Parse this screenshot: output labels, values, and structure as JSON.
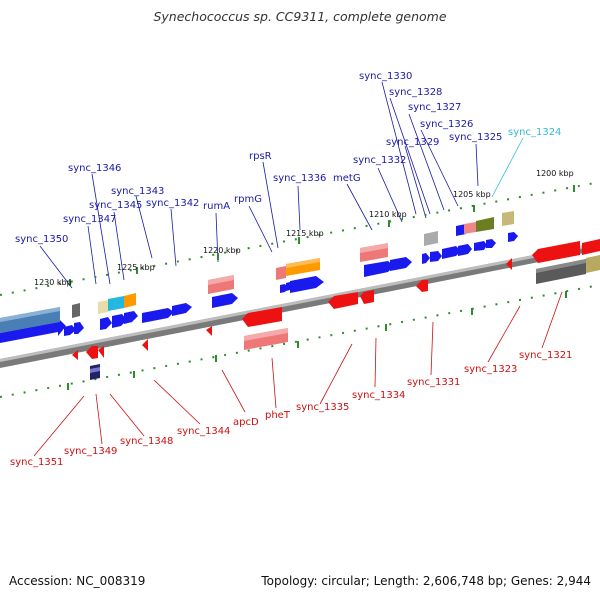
{
  "title": "Synechococcus sp. CC9311, complete genome",
  "footer": {
    "accession": "Accession: NC_008319",
    "summary": "Topology: circular; Length: 2,606,748 bp; Genes: 2,944"
  },
  "colors": {
    "forward_gene": "#1a1aee",
    "reverse_gene": "#ee1111",
    "label_forward": "#1a1aa8",
    "label_reverse": "#cc1111",
    "label_highlight": "#33bbdd",
    "backbone": "#7a7a7a",
    "tick": "#2e8b2e"
  },
  "ruler": [
    "1200 kbp",
    "1205 kbp",
    "1210 kbp",
    "1215 kbp",
    "1220 kbp",
    "1225 kbp",
    "1230 kbp"
  ],
  "forward_labels": [
    "sync_1330",
    "sync_1328",
    "sync_1327",
    "sync_1326",
    "sync_1329",
    "sync_1325",
    "sync_1324",
    "sync_1332",
    "rpsR",
    "metG",
    "sync_1336",
    "rpmG",
    "sync_1346",
    "sync_1343",
    "sync_1345",
    "sync_1342",
    "sync_1347",
    "rumA",
    "sync_1350"
  ],
  "reverse_labels": [
    "sync_1321",
    "sync_1323",
    "sync_1331",
    "sync_1334",
    "sync_1335",
    "pheT",
    "apcD",
    "sync_1344",
    "sync_1348",
    "sync_1349",
    "sync_1351"
  ]
}
